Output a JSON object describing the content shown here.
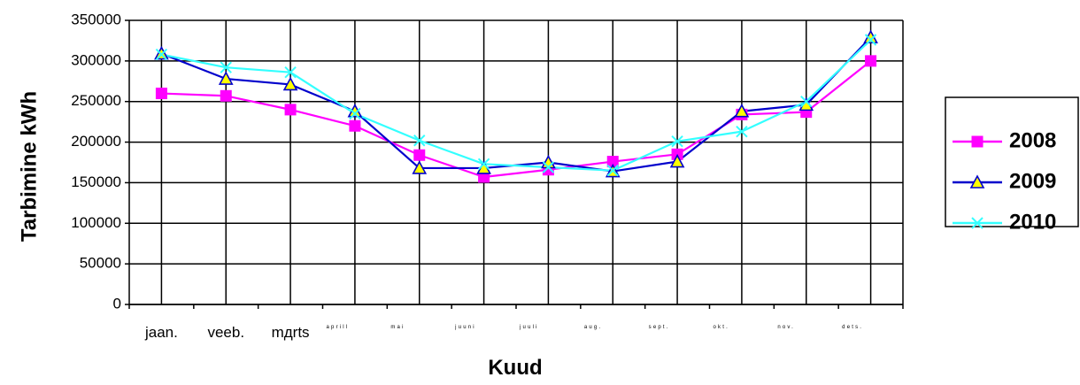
{
  "chart_data": {
    "type": "line",
    "title": "",
    "xlabel": "Kuud",
    "ylabel": "Tarbimine  kWh",
    "ylim": [
      0,
      350000
    ],
    "yticks": [
      0,
      50000,
      100000,
      150000,
      200000,
      250000,
      300000,
      350000
    ],
    "ytick_labels": [
      "0",
      "50000",
      "100000",
      "150000",
      "200000",
      "250000",
      "300000",
      "350000"
    ],
    "categories": [
      "jaan.",
      "veeb.",
      "mдrts",
      "aprill",
      "mai",
      "juuni",
      "juuli",
      "aug.",
      "sept.",
      "okt.",
      "nov.",
      "dets."
    ],
    "grid": true,
    "legend_position": "right",
    "series": [
      {
        "name": "2008",
        "color": "#ff00ff",
        "marker": "square",
        "values": [
          260000,
          257000,
          240000,
          220000,
          184000,
          157000,
          166000,
          176000,
          185000,
          234000,
          237000,
          300000
        ]
      },
      {
        "name": "2009",
        "color": "#0000cc",
        "marker": "triangle",
        "values": [
          309000,
          278000,
          271000,
          238000,
          168000,
          168000,
          175000,
          164000,
          176000,
          238000,
          246000,
          329000
        ]
      },
      {
        "name": "2010",
        "color": "#33ffff",
        "marker": "x",
        "values": [
          308000,
          292000,
          286000,
          235000,
          202000,
          173000,
          169000,
          165000,
          201000,
          213000,
          250000,
          326000
        ]
      }
    ]
  }
}
